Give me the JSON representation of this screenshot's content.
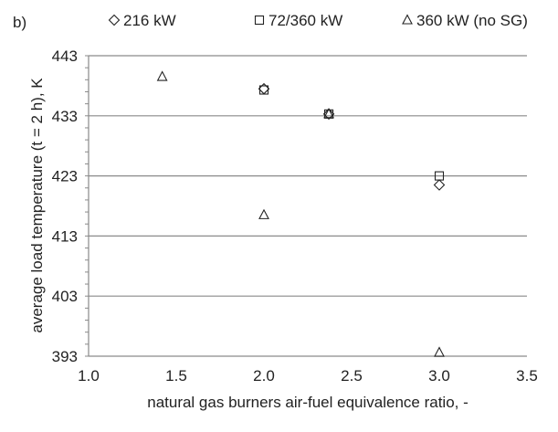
{
  "chart_data": {
    "type": "scatter",
    "panel_label": "b)",
    "xlabel": "natural gas burners air-fuel equivalence ratio, -",
    "ylabel": "average load temperature (t = 2 h), K",
    "xlim": [
      1.0,
      3.5
    ],
    "ylim": [
      393,
      443
    ],
    "x_ticks": [
      "1.0",
      "1.5",
      "2.0",
      "2.5",
      "3.0",
      "3.5"
    ],
    "y_ticks": [
      "393",
      "403",
      "413",
      "423",
      "433",
      "443"
    ],
    "grid": "horizontal",
    "legend_position": "top",
    "series": [
      {
        "name": "216 kW",
        "marker": "diamond",
        "points": [
          [
            2.0,
            437.5
          ],
          [
            2.37,
            433.3
          ],
          [
            3.0,
            421.5
          ]
        ]
      },
      {
        "name": "72/360 kW",
        "marker": "square",
        "points": [
          [
            2.0,
            437.3
          ],
          [
            2.37,
            433.3
          ],
          [
            3.0,
            423.0
          ]
        ]
      },
      {
        "name": "360 kW (no SG)",
        "marker": "triangle",
        "points": [
          [
            1.42,
            439.5
          ],
          [
            2.0,
            416.5
          ],
          [
            2.37,
            433.3
          ],
          [
            3.0,
            393.6
          ]
        ]
      }
    ]
  }
}
